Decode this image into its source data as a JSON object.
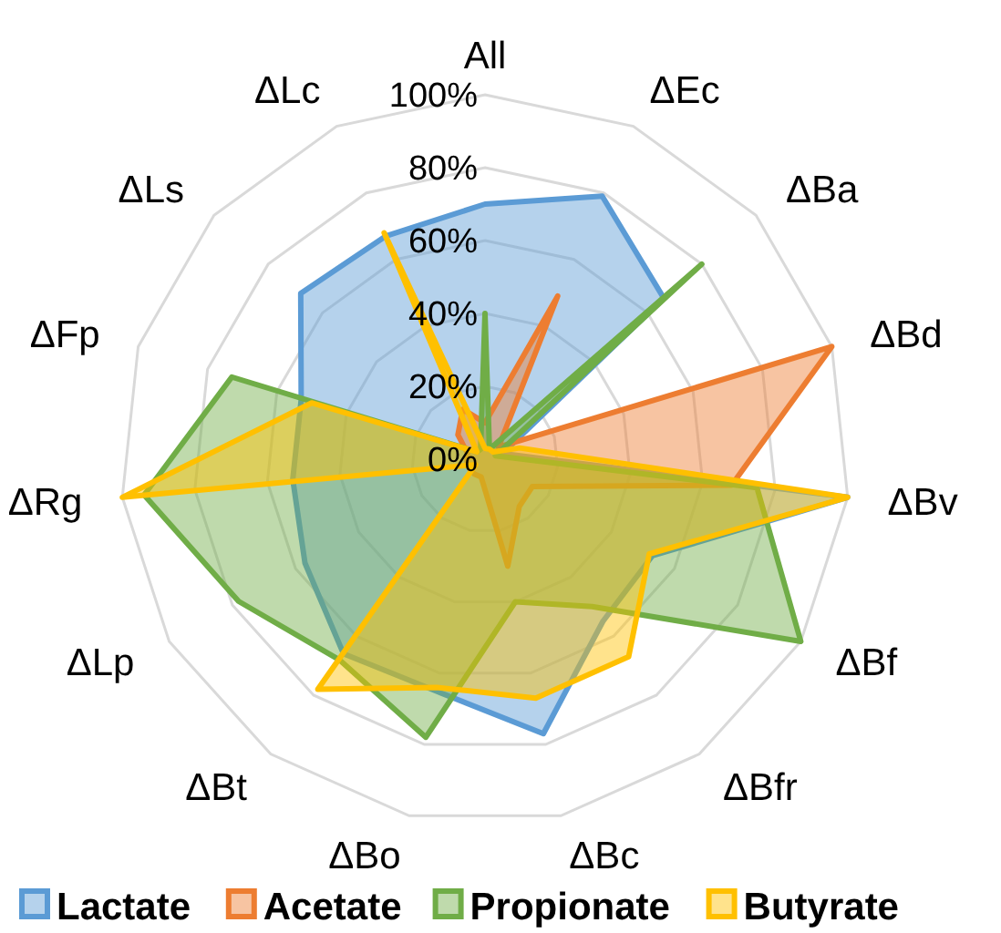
{
  "chart_data": {
    "type": "radar",
    "categories": [
      "All",
      "ΔEc",
      "ΔBa",
      "ΔBd",
      "ΔBv",
      "ΔBf",
      "ΔBfr",
      "ΔBc",
      "ΔBo",
      "ΔBt",
      "ΔLp",
      "ΔRg",
      "ΔFp",
      "ΔLs",
      "ΔLc"
    ],
    "series": [
      {
        "name": "Lactate",
        "color": "#5b9bd5",
        "values": [
          70,
          79,
          66,
          5,
          100,
          53,
          55,
          77,
          65,
          66,
          57,
          53,
          53,
          68,
          67
        ]
      },
      {
        "name": "Acetate",
        "color": "#ed7d31",
        "values": [
          10,
          49,
          5,
          100,
          68,
          15,
          16,
          30,
          5,
          5,
          5,
          5,
          5,
          10,
          15
        ]
      },
      {
        "name": "Propionate",
        "color": "#70ad47",
        "values": [
          40,
          3,
          80,
          3,
          75,
          100,
          50,
          40,
          78,
          68,
          78,
          94,
          73,
          3,
          3
        ]
      },
      {
        "name": "Butyrate",
        "color": "#ffc000",
        "values": [
          3,
          3,
          3,
          10,
          100,
          52,
          67,
          67,
          64,
          78,
          3,
          100,
          50,
          3,
          68
        ]
      }
    ],
    "ylim": [
      0,
      100
    ],
    "yticks": [
      {
        "value": 0,
        "label": "0%"
      },
      {
        "value": 20,
        "label": "20%"
      },
      {
        "value": 40,
        "label": "40%"
      },
      {
        "value": 60,
        "label": "60%"
      },
      {
        "value": 80,
        "label": "80%"
      },
      {
        "value": 100,
        "label": "100%"
      }
    ],
    "grid": true,
    "legend": "bottom",
    "marker": "none"
  }
}
